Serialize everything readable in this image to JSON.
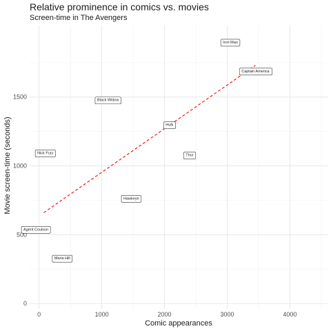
{
  "chart_data": {
    "type": "scatter",
    "title": "Relative prominence in comics vs. movies",
    "subtitle": "Screen-time in The Avengers",
    "xlabel": "Comic appearances",
    "ylabel": "Movie screen-time (seconds)",
    "xlim": [
      -150,
      4600
    ],
    "ylim": [
      -40,
      2020
    ],
    "x_ticks": [
      0,
      1000,
      2000,
      3000,
      4000
    ],
    "y_ticks": [
      0,
      500,
      1000,
      1500
    ],
    "grid": true,
    "trend_line": {
      "x": [
        75,
        3450
      ],
      "y": [
        660,
        1730
      ],
      "color": "#ff0000",
      "style": "dashed"
    },
    "points": [
      {
        "label": "Iron Man",
        "x": 3050,
        "y": 1900
      },
      {
        "label": "Captain America",
        "x": 3450,
        "y": 1690
      },
      {
        "label": "Black Widow",
        "x": 1100,
        "y": 1480
      },
      {
        "label": "Hulk",
        "x": 2080,
        "y": 1300
      },
      {
        "label": "Nick Fury",
        "x": 100,
        "y": 1095
      },
      {
        "label": "Thor",
        "x": 2400,
        "y": 1080
      },
      {
        "label": "Hawkeye",
        "x": 1470,
        "y": 765
      },
      {
        "label": "Agent Coulson",
        "x": -50,
        "y": 540
      },
      {
        "label": "Maria Hill",
        "x": 370,
        "y": 330
      }
    ]
  }
}
